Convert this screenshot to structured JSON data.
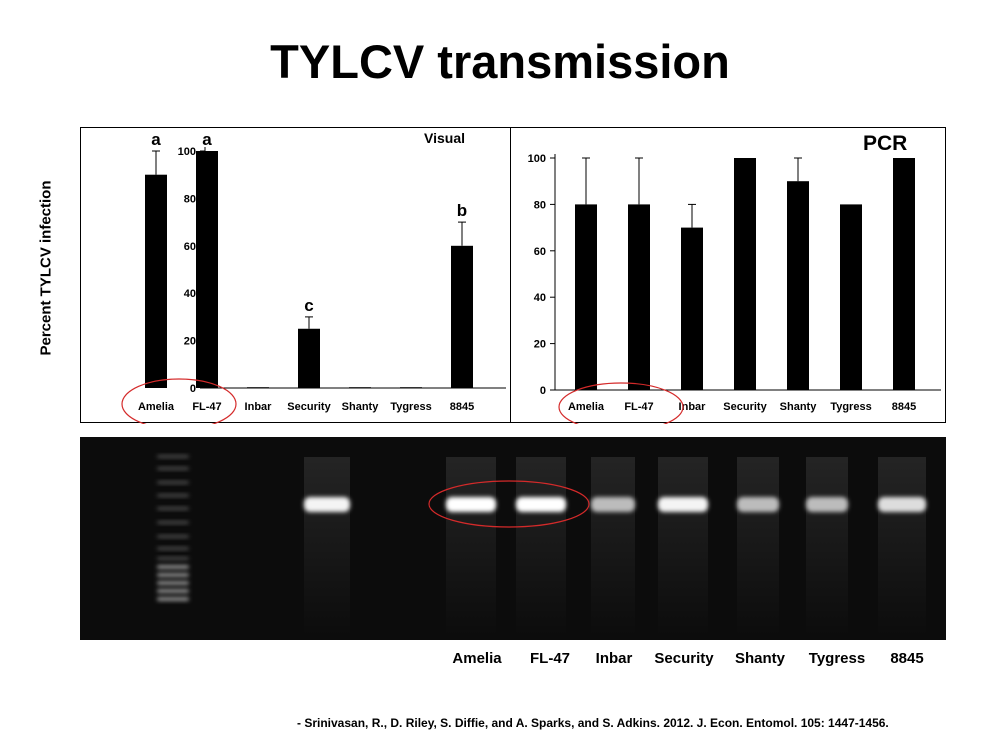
{
  "slide": {
    "title": "TYLCV transmission",
    "citation": "-  Srinivasan, R.,  D. Riley, S. Diffie, and A. Sparks, and S. Adkins. 2012. J. Econ. Entomol. 105: 1447-1456."
  },
  "chart_data": [
    {
      "type": "bar",
      "title": "Visual",
      "ylabel": "Percent TYLCV infection",
      "xlabel": "",
      "categories": [
        "Amelia",
        "FL-47",
        "Inbar",
        "Security",
        "Shanty",
        "Tygress",
        "8845"
      ],
      "values": [
        90,
        100,
        0,
        25,
        0,
        0,
        60
      ],
      "error": [
        10,
        0,
        0,
        5,
        0,
        0,
        10
      ],
      "letters": [
        "a",
        "a",
        "",
        "c",
        "",
        "",
        "b"
      ],
      "ylim": [
        0,
        100
      ],
      "yticks": [
        0,
        20,
        40,
        60,
        80,
        100
      ],
      "grid": false,
      "color": "#000000"
    },
    {
      "type": "bar",
      "title": "PCR",
      "xlabel": "",
      "categories": [
        "Amelia",
        "FL-47",
        "Inbar",
        "Security",
        "Shanty",
        "Tygress",
        "8845"
      ],
      "values": [
        80,
        80,
        70,
        100,
        90,
        80,
        100
      ],
      "error": [
        20,
        20,
        10,
        0,
        10,
        0,
        0
      ],
      "ylim": [
        0,
        100
      ],
      "yticks": [
        0,
        20,
        40,
        60,
        80,
        100
      ],
      "grid": false,
      "color": "#000000"
    }
  ],
  "gel": {
    "lanes": [
      "Amelia",
      "FL-47",
      "Inbar",
      "Security",
      "Shanty",
      "Tygress",
      "8845"
    ],
    "highlight_color": "#d42a2a"
  }
}
